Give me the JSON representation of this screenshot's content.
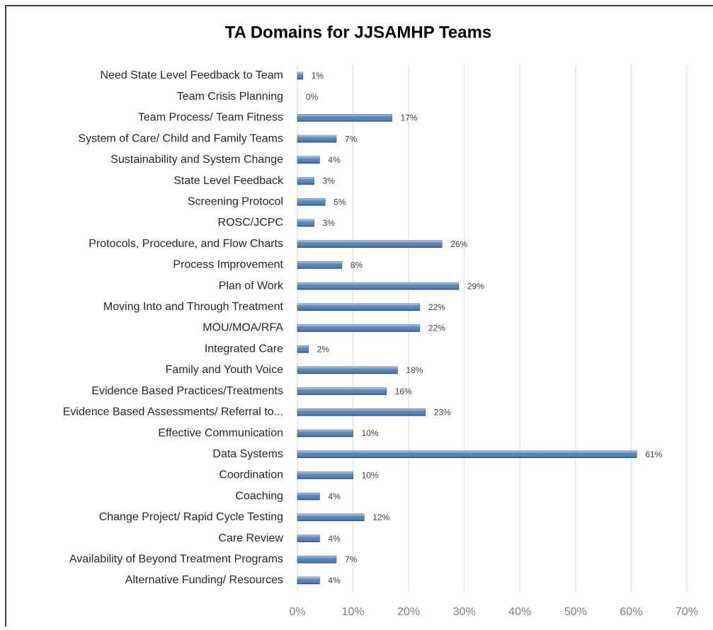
{
  "chart_data": {
    "type": "bar",
    "orientation": "horizontal",
    "title": "TA Domains for JJSAMHP Teams",
    "categories": [
      "Need State Level Feedback to Team",
      "Team Crisis Planning",
      "Team Process/ Team Fitness",
      "System of Care/ Child and Family Teams",
      "Sustainability and System Change",
      "State Level Feedback",
      "Screening Protocol",
      "ROSC/JCPC",
      "Protocols, Procedure, and Flow Charts",
      "Process Improvement",
      "Plan of Work",
      "Moving Into and Through Treatment",
      "MOU/MOA/RFA",
      "Integrated Care",
      "Family and Youth Voice",
      "Evidence Based Practices/Treatments",
      "Evidence Based Assessments/ Referral to...",
      "Effective Communication",
      "Data Systems",
      "Coordination",
      "Coaching",
      "Change Project/ Rapid Cycle Testing",
      "Care Review",
      "Availability of Beyond Treatment Programs",
      "Alternative Funding/ Resources"
    ],
    "values": [
      1,
      0,
      17,
      7,
      4,
      3,
      5,
      3,
      26,
      8,
      29,
      22,
      22,
      2,
      18,
      16,
      23,
      10,
      61,
      10,
      4,
      12,
      4,
      7,
      4
    ],
    "value_labels": [
      "1%",
      "0%",
      "17%",
      "7%",
      "4%",
      "3%",
      "5%",
      "3%",
      "26%",
      "8%",
      "29%",
      "22%",
      "22%",
      "2%",
      "18%",
      "16%",
      "23%",
      "10%",
      "61%",
      "10%",
      "4%",
      "12%",
      "4%",
      "7%",
      "4%"
    ],
    "color": "#4f81bd",
    "xlim": [
      0,
      70
    ],
    "xticks": [
      {
        "value": 0,
        "label": "0%"
      },
      {
        "value": 10,
        "label": "10%"
      },
      {
        "value": 20,
        "label": "20%"
      },
      {
        "value": 30,
        "label": "30%"
      },
      {
        "value": 40,
        "label": "40%"
      },
      {
        "value": 50,
        "label": "50%"
      },
      {
        "value": 60,
        "label": "60%"
      },
      {
        "value": 70,
        "label": "70%"
      }
    ],
    "grid": true
  }
}
